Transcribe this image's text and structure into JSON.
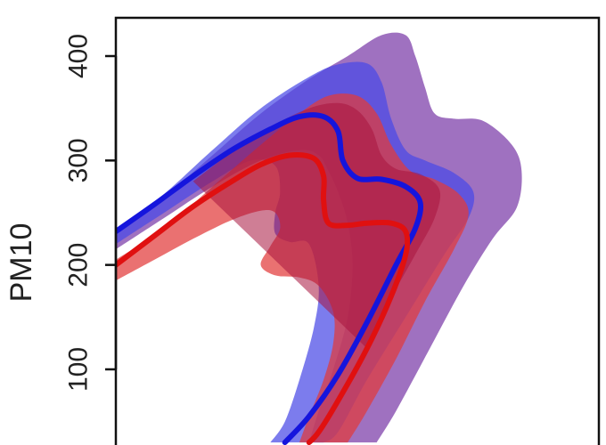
{
  "chart_data": {
    "type": "area",
    "title": "",
    "xlabel": "",
    "ylabel": "PM10",
    "ylim": [
      30,
      450
    ],
    "y_ticks": [
      100,
      200,
      300,
      400
    ],
    "y_tick_labels": [
      "100",
      "200",
      "300",
      "400"
    ],
    "x_ticks_visible": false,
    "grid": false,
    "legend": "none",
    "colors": {
      "blue_band": "#4a4ae6",
      "purple_band": "#7a3aa8",
      "red_band": "#e23a3a",
      "dark_red_band": "#a8143e",
      "blue_line": "#1515dd",
      "red_line": "#e01010",
      "purple_line": "#6a1a9a"
    },
    "bands": [
      {
        "color": "purple_band",
        "upper": [
          [
            0,
            230
          ],
          [
            10,
            265
          ],
          [
            20,
            305
          ],
          [
            30,
            345
          ],
          [
            40,
            378
          ],
          [
            48,
            400
          ],
          [
            55,
            420
          ],
          [
            60,
            420
          ],
          [
            62,
            400
          ],
          [
            64,
            370
          ],
          [
            66,
            345
          ],
          [
            70,
            340
          ],
          [
            76,
            338
          ],
          [
            82,
            315
          ],
          [
            84,
            290
          ],
          [
            83,
            255
          ],
          [
            78,
            225
          ],
          [
            72,
            180
          ],
          [
            65,
            120
          ],
          [
            58,
            60
          ],
          [
            54,
            30
          ]
        ],
        "lower": [
          [
            0,
            215
          ],
          [
            10,
            245
          ],
          [
            20,
            275
          ],
          [
            30,
            300
          ],
          [
            38,
            310
          ],
          [
            42,
            305
          ],
          [
            44,
            290
          ],
          [
            46,
            270
          ],
          [
            48,
            240
          ],
          [
            49,
            200
          ],
          [
            48,
            150
          ],
          [
            45,
            100
          ],
          [
            42,
            60
          ],
          [
            40,
            30
          ]
        ]
      },
      {
        "color": "blue_band",
        "upper": [
          [
            0,
            232
          ],
          [
            10,
            268
          ],
          [
            20,
            310
          ],
          [
            30,
            350
          ],
          [
            40,
            380
          ],
          [
            46,
            392
          ],
          [
            52,
            393
          ],
          [
            55,
            375
          ],
          [
            57,
            340
          ],
          [
            60,
            310
          ],
          [
            64,
            300
          ],
          [
            70,
            288
          ],
          [
            74,
            270
          ],
          [
            73,
            245
          ],
          [
            68,
            210
          ],
          [
            60,
            150
          ],
          [
            52,
            90
          ],
          [
            46,
            40
          ],
          [
            43,
            30
          ]
        ],
        "lower": [
          [
            0,
            220
          ],
          [
            10,
            250
          ],
          [
            20,
            280
          ],
          [
            28,
            300
          ],
          [
            33,
            295
          ],
          [
            34,
            270
          ],
          [
            33,
            250
          ],
          [
            33,
            230
          ],
          [
            36,
            222
          ],
          [
            40,
            220
          ],
          [
            42,
            180
          ],
          [
            41,
            140
          ],
          [
            38,
            90
          ],
          [
            35,
            50
          ],
          [
            32,
            30
          ]
        ]
      },
      {
        "color": "red_band",
        "upper": [
          [
            0,
            205
          ],
          [
            10,
            235
          ],
          [
            20,
            275
          ],
          [
            30,
            315
          ],
          [
            38,
            345
          ],
          [
            44,
            362
          ],
          [
            50,
            362
          ],
          [
            54,
            345
          ],
          [
            57,
            315
          ],
          [
            61,
            290
          ],
          [
            66,
            282
          ],
          [
            71,
            268
          ],
          [
            73,
            248
          ],
          [
            70,
            215
          ],
          [
            64,
            165
          ],
          [
            58,
            110
          ],
          [
            52,
            60
          ],
          [
            48,
            30
          ]
        ],
        "lower": [
          [
            0,
            185
          ],
          [
            8,
            205
          ],
          [
            16,
            225
          ],
          [
            24,
            243
          ],
          [
            30,
            252
          ],
          [
            33,
            250
          ],
          [
            34,
            235
          ],
          [
            32,
            218
          ],
          [
            30,
            200
          ],
          [
            33,
            190
          ],
          [
            38,
            188
          ],
          [
            42,
            180
          ],
          [
            45,
            155
          ],
          [
            45,
            125
          ],
          [
            43,
            90
          ],
          [
            40,
            55
          ],
          [
            38,
            30
          ]
        ]
      },
      {
        "color": "dark_red_band",
        "upper": [
          [
            16,
            280
          ],
          [
            24,
            308
          ],
          [
            32,
            332
          ],
          [
            40,
            350
          ],
          [
            46,
            355
          ],
          [
            50,
            348
          ],
          [
            53,
            330
          ],
          [
            55,
            305
          ],
          [
            58,
            292
          ],
          [
            63,
            287
          ],
          [
            67,
            272
          ],
          [
            66,
            245
          ],
          [
            62,
            210
          ],
          [
            56,
            160
          ],
          [
            52,
            120
          ]
        ],
        "lower": [
          [
            52,
            120
          ],
          [
            50,
            160
          ],
          [
            48,
            200
          ],
          [
            47,
            235
          ],
          [
            44,
            245
          ],
          [
            40,
            248
          ],
          [
            36,
            262
          ],
          [
            31,
            275
          ],
          [
            24,
            278
          ],
          [
            16,
            280
          ]
        ]
      }
    ],
    "series": [
      {
        "color": "blue_line",
        "points": [
          [
            0,
            232
          ],
          [
            8,
            258
          ],
          [
            16,
            285
          ],
          [
            24,
            310
          ],
          [
            32,
            330
          ],
          [
            38,
            342
          ],
          [
            43,
            342
          ],
          [
            46,
            328
          ],
          [
            47,
            300
          ],
          [
            50,
            283
          ],
          [
            55,
            282
          ],
          [
            60,
            275
          ],
          [
            63,
            260
          ],
          [
            62,
            235
          ],
          [
            58,
            200
          ],
          [
            52,
            145
          ],
          [
            46,
            95
          ],
          [
            40,
            55
          ],
          [
            35,
            30
          ]
        ]
      },
      {
        "color": "red_line",
        "points": [
          [
            0,
            200
          ],
          [
            8,
            228
          ],
          [
            16,
            256
          ],
          [
            24,
            280
          ],
          [
            30,
            296
          ],
          [
            36,
            305
          ],
          [
            41,
            302
          ],
          [
            43,
            285
          ],
          [
            43,
            262
          ],
          [
            44,
            240
          ],
          [
            48,
            238
          ],
          [
            52,
            240
          ],
          [
            57,
            240
          ],
          [
            60,
            232
          ],
          [
            60,
            210
          ],
          [
            57,
            170
          ],
          [
            52,
            120
          ],
          [
            46,
            70
          ],
          [
            42,
            40
          ],
          [
            40,
            30
          ]
        ]
      }
    ]
  }
}
